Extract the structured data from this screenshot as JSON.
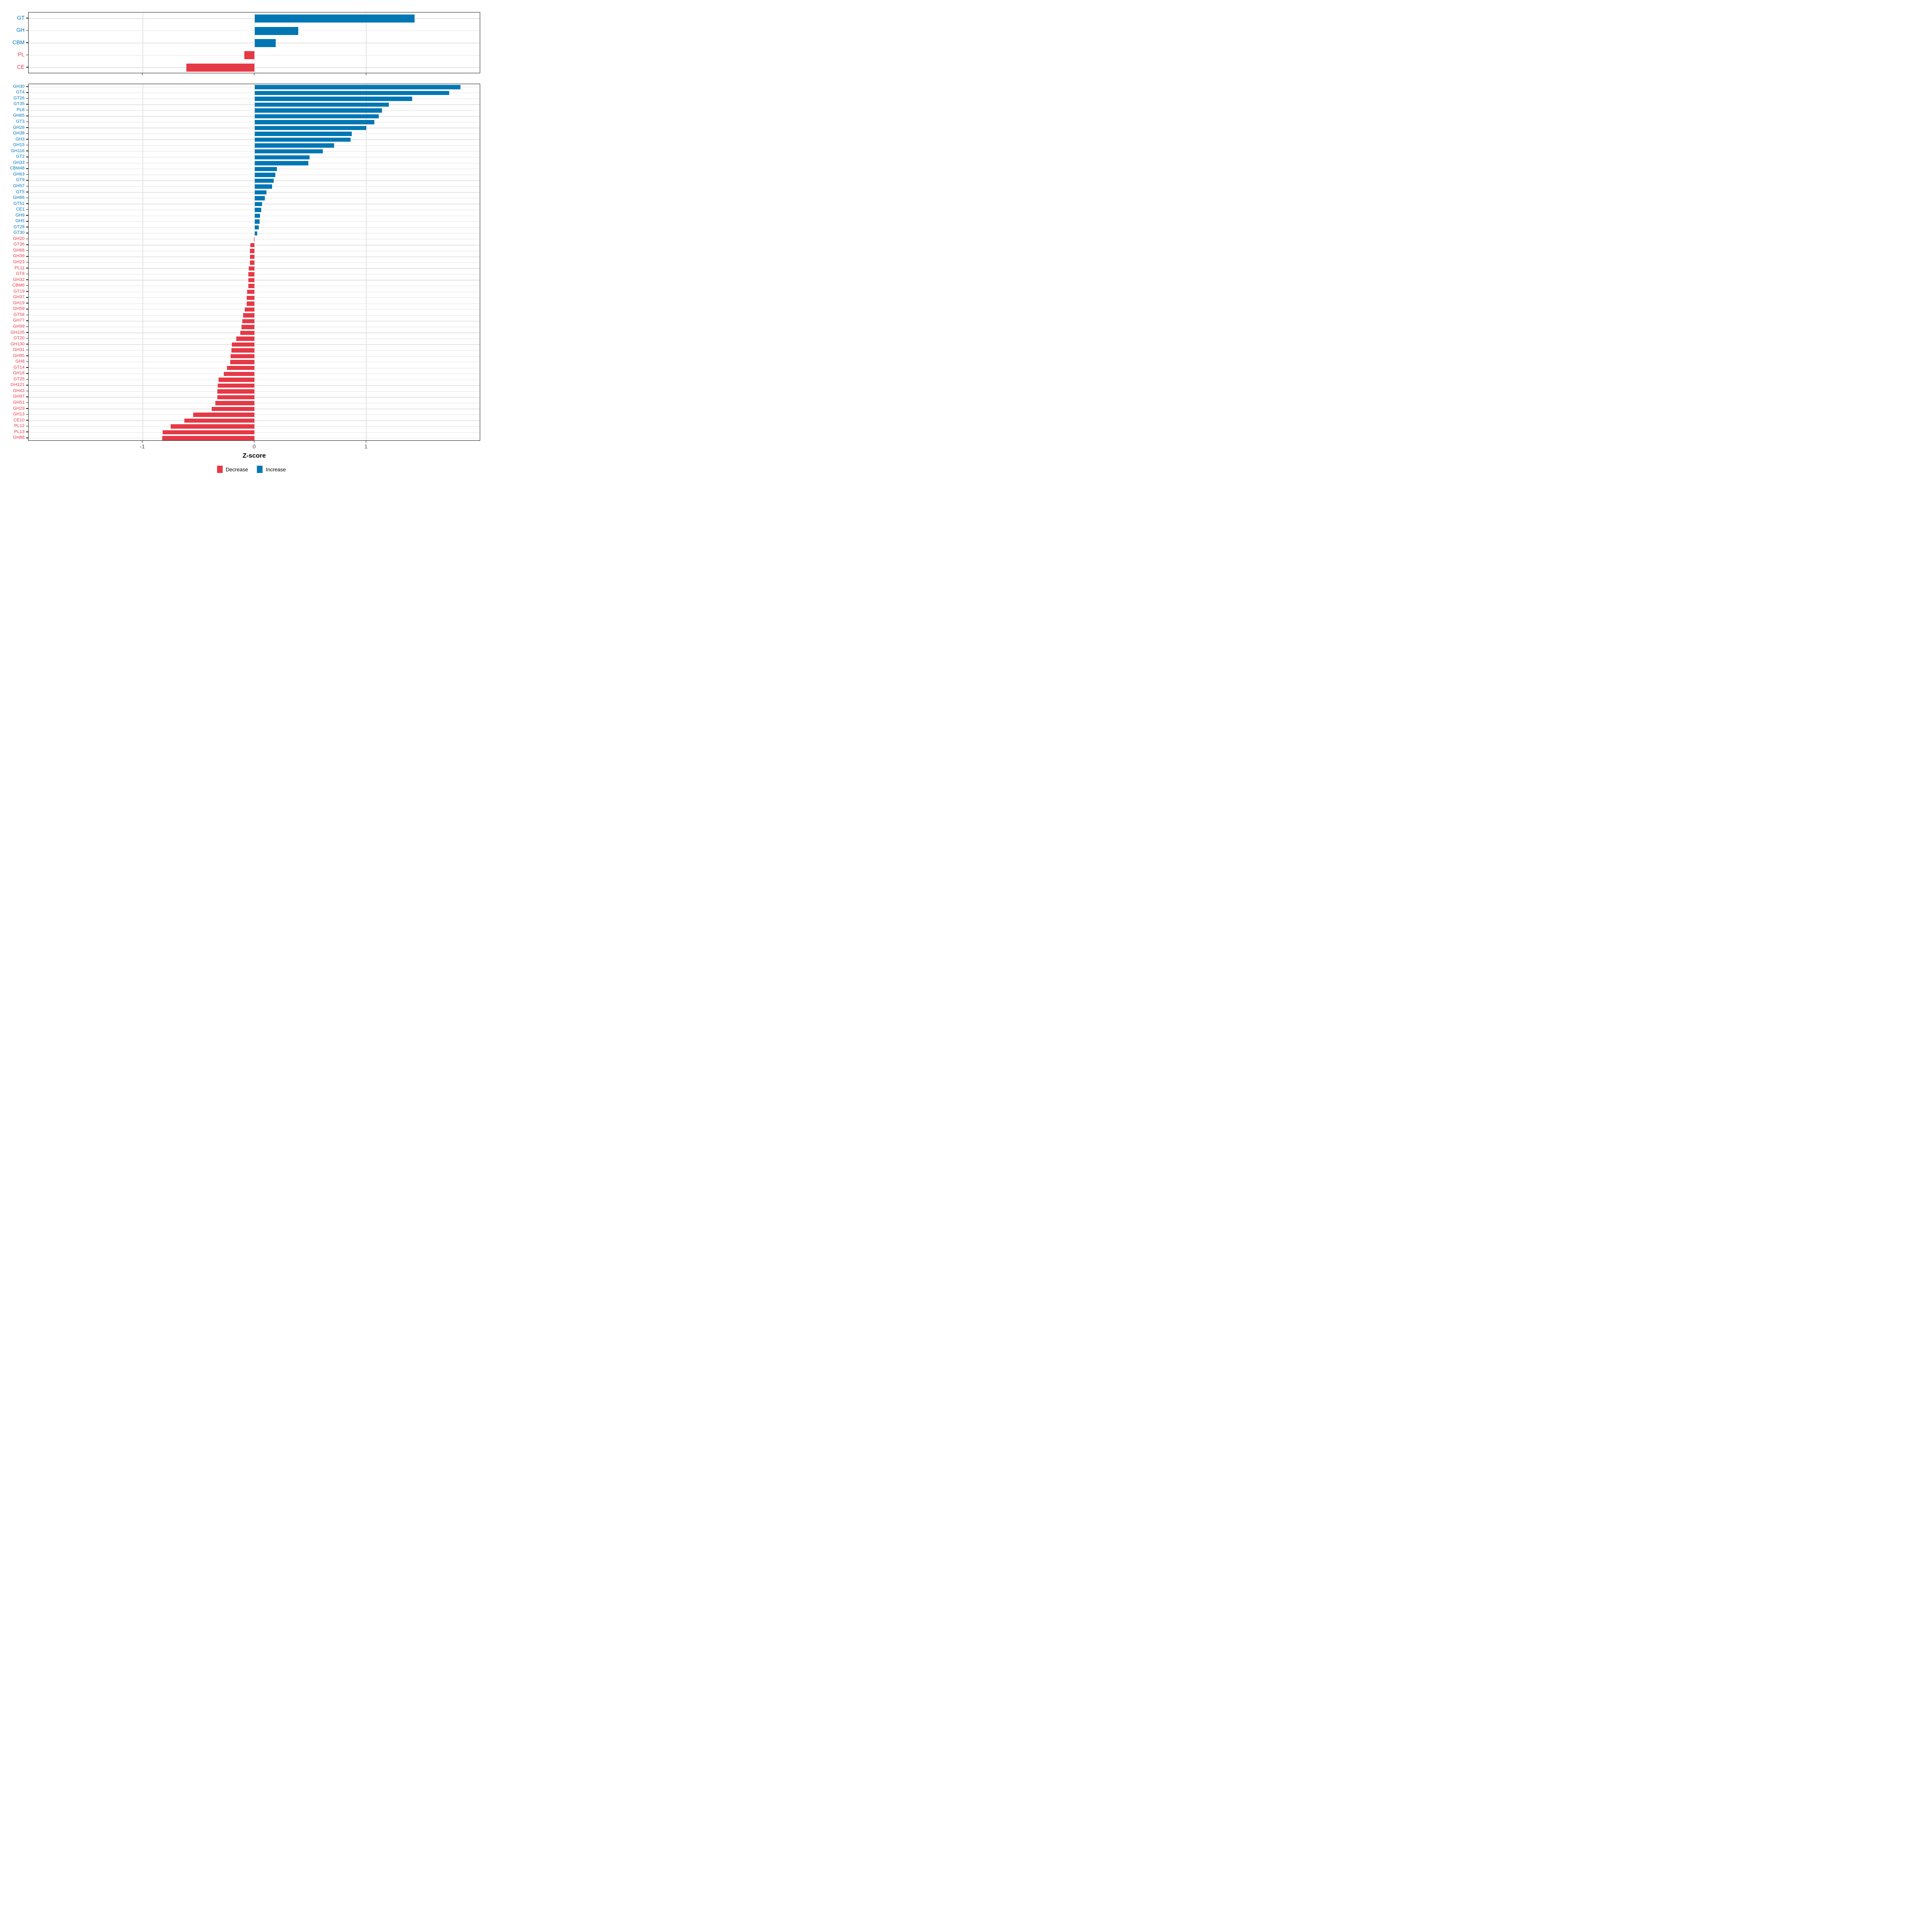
{
  "axis": {
    "xlabel": "Z-score",
    "tick_labels": [
      "-1",
      "0",
      "1"
    ],
    "tick_values": [
      -1,
      0,
      1
    ],
    "xlim": [
      -2.02,
      2.02
    ]
  },
  "colors": {
    "increase": "#0077b4",
    "decrease": "#e63946",
    "gridline": "#e3e3e3",
    "axis_text": "#4d4d4d",
    "panel_border": "#1a1a1a"
  },
  "legend": {
    "items": [
      {
        "label": "Decrease",
        "group": "decrease"
      },
      {
        "label": "Increase",
        "group": "increase"
      }
    ]
  },
  "chart_data": [
    {
      "type": "bar",
      "orientation": "horizontal",
      "panel": "cazyme-class-summary",
      "xlabel": "Z-score",
      "xlim": [
        -2.02,
        2.02
      ],
      "grid": true,
      "categories": [
        "GT",
        "GH",
        "CBM",
        "PL",
        "CE"
      ],
      "values": [
        1.43,
        0.39,
        0.19,
        -0.09,
        -0.61
      ],
      "groups": [
        "increase",
        "increase",
        "increase",
        "decrease",
        "decrease"
      ]
    },
    {
      "type": "bar",
      "orientation": "horizontal",
      "panel": "cazyme-family-detail",
      "xlabel": "Z-score",
      "xlim": [
        -2.02,
        2.02
      ],
      "grid": true,
      "categories": [
        "GH30",
        "GT4",
        "GT26",
        "GT35",
        "PL8",
        "GH65",
        "GT3",
        "GH26",
        "GH38",
        "GH3",
        "GH15",
        "GH116",
        "GT2",
        "GH33",
        "CBM48",
        "GH63",
        "GT9",
        "GH57",
        "GT5",
        "GH66",
        "GT51",
        "CE1",
        "GH9",
        "GH5",
        "GT28",
        "GT30",
        "GH20",
        "GT36",
        "GH68",
        "GH39",
        "GH23",
        "PL11",
        "GT8",
        "GH32",
        "CBM6",
        "GT19",
        "GH37",
        "GH19",
        "GH59",
        "GT56",
        "GH77",
        "GH99",
        "GH105",
        "GT20",
        "GH130",
        "GH31",
        "GH95",
        "GH8",
        "GT14",
        "GH18",
        "GT25",
        "GH121",
        "GH43",
        "GH97",
        "GH51",
        "GH29",
        "GH13",
        "CE10",
        "PL12",
        "PL13",
        "GH88"
      ],
      "values": [
        1.84,
        1.74,
        1.41,
        1.2,
        1.14,
        1.11,
        1.07,
        1.0,
        0.87,
        0.86,
        0.71,
        0.61,
        0.49,
        0.48,
        0.2,
        0.185,
        0.17,
        0.155,
        0.105,
        0.09,
        0.067,
        0.058,
        0.048,
        0.045,
        0.038,
        0.022,
        -0.005,
        -0.037,
        -0.04,
        -0.04,
        -0.04,
        -0.053,
        -0.056,
        -0.056,
        -0.056,
        -0.067,
        -0.069,
        -0.069,
        -0.088,
        -0.104,
        -0.109,
        -0.118,
        -0.128,
        -0.165,
        -0.205,
        -0.208,
        -0.214,
        -0.218,
        -0.248,
        -0.277,
        -0.323,
        -0.328,
        -0.332,
        -0.332,
        -0.352,
        -0.385,
        -0.549,
        -0.628,
        -0.749,
        -0.822,
        -0.827
      ],
      "groups": [
        "increase",
        "increase",
        "increase",
        "increase",
        "increase",
        "increase",
        "increase",
        "increase",
        "increase",
        "increase",
        "increase",
        "increase",
        "increase",
        "increase",
        "increase",
        "increase",
        "increase",
        "increase",
        "increase",
        "increase",
        "increase",
        "increase",
        "increase",
        "increase",
        "increase",
        "increase",
        "decrease",
        "decrease",
        "decrease",
        "decrease",
        "decrease",
        "decrease",
        "decrease",
        "decrease",
        "decrease",
        "decrease",
        "decrease",
        "decrease",
        "decrease",
        "decrease",
        "decrease",
        "decrease",
        "decrease",
        "decrease",
        "decrease",
        "decrease",
        "decrease",
        "decrease",
        "decrease",
        "decrease",
        "decrease",
        "decrease",
        "decrease",
        "decrease",
        "decrease",
        "decrease",
        "decrease",
        "decrease",
        "decrease",
        "decrease",
        "decrease"
      ]
    }
  ]
}
